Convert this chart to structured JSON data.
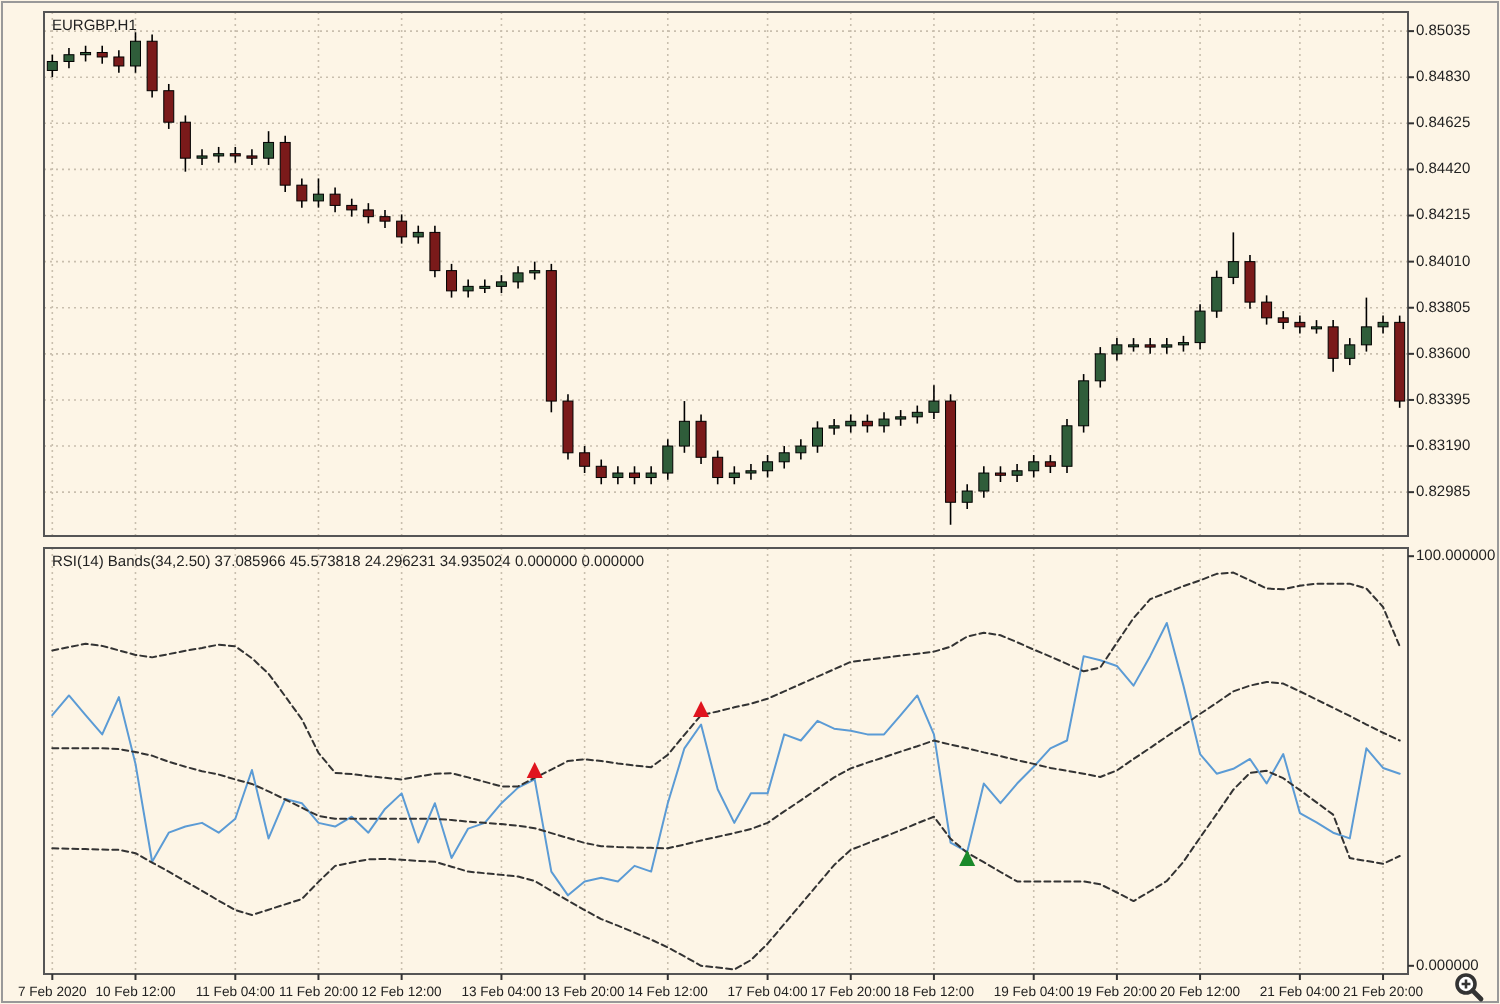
{
  "chart_data": [
    {
      "type": "candlestick",
      "title": "EURGBP,H1",
      "tick_labels": "y",
      "grid": true,
      "categories": [
        null,
        null,
        null,
        null,
        null,
        null,
        null,
        null,
        null,
        null,
        null,
        null,
        null,
        null,
        null,
        null,
        null,
        null,
        null,
        null,
        null,
        null,
        null,
        null,
        null,
        null,
        null,
        null,
        null,
        null,
        null,
        null,
        null,
        null,
        null,
        null,
        null,
        null,
        null,
        null,
        null,
        null,
        null,
        null,
        null,
        null,
        null,
        null,
        null,
        null,
        null,
        null,
        null,
        null,
        null,
        null,
        null,
        null,
        null,
        null,
        null,
        null,
        null,
        null,
        null,
        null,
        null,
        null,
        null,
        null,
        null,
        null,
        null,
        null,
        null,
        null,
        null,
        null,
        null,
        null,
        null,
        null
      ],
      "colors": [
        "#2f5d3a",
        "#2f5d3a",
        "#2f5d3a",
        "#7a1a1a",
        "#7a1a1a",
        "#2f5d3a",
        "#7a1a1a",
        "#7a1a1a",
        "#7a1a1a",
        "#2f5d3a",
        "#2f5d3a",
        "#7a1a1a",
        "#7a1a1a",
        "#2f5d3a",
        "#7a1a1a",
        "#7a1a1a",
        "#2f5d3a",
        "#7a1a1a",
        "#7a1a1a",
        "#7a1a1a",
        "#7a1a1a",
        "#7a1a1a",
        "#2f5d3a",
        "#7a1a1a",
        "#7a1a1a",
        "#2f5d3a",
        "#2f5d3a",
        "#2f5d3a",
        "#2f5d3a",
        "#2f5d3a",
        "#7a1a1a",
        "#7a1a1a",
        "#7a1a1a",
        "#7a1a1a",
        "#2f5d3a",
        "#7a1a1a",
        "#2f5d3a",
        "#2f5d3a",
        "#2f5d3a",
        "#7a1a1a",
        "#7a1a1a",
        "#2f5d3a",
        "#2f5d3a",
        "#2f5d3a",
        "#2f5d3a",
        "#2f5d3a",
        "#2f5d3a",
        "#2f5d3a",
        "#2f5d3a",
        "#7a1a1a",
        "#2f5d3a",
        "#2f5d3a",
        "#2f5d3a",
        "#2f5d3a",
        "#7a1a1a",
        "#2f5d3a",
        "#2f5d3a",
        "#7a1a1a",
        "#2f5d3a",
        "#2f5d3a",
        "#7a1a1a",
        "#2f5d3a",
        "#2f5d3a",
        "#2f5d3a",
        "#2f5d3a",
        "#2f5d3a",
        "#7a1a1a",
        "#2f5d3a",
        "#2f5d3a",
        "#2f5d3a",
        "#2f5d3a",
        "#2f5d3a",
        "#7a1a1a",
        "#7a1a1a",
        "#7a1a1a",
        "#7a1a1a",
        "#2f5d3a",
        "#7a1a1a",
        "#2f5d3a",
        "#2f5d3a",
        "#2f5d3a",
        "#7a1a1a"
      ],
      "ohlc": [
        [
          0.8486,
          0.8493,
          0.8483,
          0.849
        ],
        [
          0.849,
          0.8496,
          0.8487,
          0.8493
        ],
        [
          0.8493,
          0.8497,
          0.849,
          0.8494
        ],
        [
          0.8494,
          0.8497,
          0.8489,
          0.8492
        ],
        [
          0.8492,
          0.8495,
          0.8485,
          0.8488
        ],
        [
          0.8488,
          0.8503,
          0.8485,
          0.8499
        ],
        [
          0.8499,
          0.8502,
          0.8474,
          0.8477
        ],
        [
          0.8477,
          0.848,
          0.846,
          0.8463
        ],
        [
          0.8463,
          0.8466,
          0.8441,
          0.8447
        ],
        [
          0.8447,
          0.8451,
          0.8444,
          0.8448
        ],
        [
          0.8448,
          0.8452,
          0.8445,
          0.8449
        ],
        [
          0.8449,
          0.8452,
          0.8445,
          0.8448
        ],
        [
          0.8448,
          0.8451,
          0.8444,
          0.8447
        ],
        [
          0.8447,
          0.8459,
          0.8444,
          0.8454
        ],
        [
          0.8454,
          0.8457,
          0.8432,
          0.8435
        ],
        [
          0.8435,
          0.8438,
          0.8425,
          0.8428
        ],
        [
          0.8428,
          0.8438,
          0.8425,
          0.8431
        ],
        [
          0.8431,
          0.8434,
          0.8423,
          0.8426
        ],
        [
          0.8426,
          0.8429,
          0.8421,
          0.8424
        ],
        [
          0.8424,
          0.8427,
          0.8418,
          0.8421
        ],
        [
          0.8421,
          0.8424,
          0.8416,
          0.8419
        ],
        [
          0.8419,
          0.8422,
          0.8409,
          0.8412
        ],
        [
          0.8412,
          0.8417,
          0.8409,
          0.8414
        ],
        [
          0.8414,
          0.8417,
          0.8394,
          0.8397
        ],
        [
          0.8397,
          0.84,
          0.8385,
          0.8388
        ],
        [
          0.8388,
          0.8393,
          0.8385,
          0.839
        ],
        [
          0.839,
          0.8393,
          0.8387,
          0.839
        ],
        [
          0.839,
          0.8395,
          0.8387,
          0.8392
        ],
        [
          0.8392,
          0.8399,
          0.8389,
          0.8396
        ],
        [
          0.8396,
          0.8401,
          0.8393,
          0.8397
        ],
        [
          0.8397,
          0.84,
          0.8334,
          0.8339
        ],
        [
          0.8339,
          0.8342,
          0.8313,
          0.8316
        ],
        [
          0.8316,
          0.8319,
          0.8307,
          0.831
        ],
        [
          0.831,
          0.8313,
          0.8302,
          0.8305
        ],
        [
          0.8305,
          0.831,
          0.8302,
          0.8307
        ],
        [
          0.8307,
          0.831,
          0.8302,
          0.8305
        ],
        [
          0.8305,
          0.831,
          0.8302,
          0.8307
        ],
        [
          0.8307,
          0.8322,
          0.8304,
          0.8319
        ],
        [
          0.8319,
          0.8339,
          0.8316,
          0.833
        ],
        [
          0.833,
          0.8333,
          0.8311,
          0.8314
        ],
        [
          0.8314,
          0.8317,
          0.8302,
          0.8305
        ],
        [
          0.8305,
          0.831,
          0.8302,
          0.8307
        ],
        [
          0.8307,
          0.8311,
          0.8304,
          0.8308
        ],
        [
          0.8308,
          0.8315,
          0.8305,
          0.8312
        ],
        [
          0.8312,
          0.8319,
          0.8309,
          0.8316
        ],
        [
          0.8316,
          0.8322,
          0.8313,
          0.8319
        ],
        [
          0.8319,
          0.833,
          0.8316,
          0.8327
        ],
        [
          0.8327,
          0.8331,
          0.8324,
          0.8328
        ],
        [
          0.8328,
          0.8333,
          0.8325,
          0.833
        ],
        [
          0.833,
          0.8333,
          0.8325,
          0.8328
        ],
        [
          0.8328,
          0.8334,
          0.8325,
          0.8331
        ],
        [
          0.8331,
          0.8335,
          0.8328,
          0.8332
        ],
        [
          0.8332,
          0.8337,
          0.8329,
          0.8334
        ],
        [
          0.8334,
          0.8346,
          0.8331,
          0.8339
        ],
        [
          0.8339,
          0.8342,
          0.8284,
          0.8294
        ],
        [
          0.8294,
          0.8302,
          0.8291,
          0.8299
        ],
        [
          0.8299,
          0.831,
          0.8296,
          0.8307
        ],
        [
          0.8307,
          0.831,
          0.8303,
          0.8306
        ],
        [
          0.8306,
          0.8311,
          0.8303,
          0.8308
        ],
        [
          0.8308,
          0.8315,
          0.8305,
          0.8312
        ],
        [
          0.8312,
          0.8315,
          0.8307,
          0.831
        ],
        [
          0.831,
          0.8331,
          0.8307,
          0.8328
        ],
        [
          0.8328,
          0.8351,
          0.8325,
          0.8348
        ],
        [
          0.8348,
          0.8363,
          0.8345,
          0.836
        ],
        [
          0.836,
          0.8367,
          0.8357,
          0.8364
        ],
        [
          0.8364,
          0.8367,
          0.8361,
          0.8364
        ],
        [
          0.8364,
          0.8367,
          0.836,
          0.8363
        ],
        [
          0.8363,
          0.8367,
          0.836,
          0.8364
        ],
        [
          0.8364,
          0.8368,
          0.8361,
          0.8365
        ],
        [
          0.8365,
          0.8382,
          0.8362,
          0.8379
        ],
        [
          0.8379,
          0.8397,
          0.8376,
          0.8394
        ],
        [
          0.8394,
          0.8414,
          0.8391,
          0.8401
        ],
        [
          0.8401,
          0.8404,
          0.838,
          0.8383
        ],
        [
          0.8383,
          0.8386,
          0.8373,
          0.8376
        ],
        [
          0.8376,
          0.8379,
          0.8371,
          0.8374
        ],
        [
          0.8374,
          0.8377,
          0.8369,
          0.8372
        ],
        [
          0.8372,
          0.8375,
          0.8369,
          0.8372
        ],
        [
          0.8372,
          0.8375,
          0.8352,
          0.8358
        ],
        [
          0.8358,
          0.8367,
          0.8355,
          0.8364
        ],
        [
          0.8364,
          0.8385,
          0.8361,
          0.8372
        ],
        [
          0.8372,
          0.8377,
          0.8369,
          0.8374
        ],
        [
          0.8374,
          0.8377,
          0.8336,
          0.8339
        ]
      ],
      "ylim": [
        0.8279,
        0.8512
      ],
      "yticks": [
        {
          "value": 0.85035,
          "label": "0.85035"
        },
        {
          "value": 0.8483,
          "label": "0.84830"
        },
        {
          "value": 0.84625,
          "label": "0.84625"
        },
        {
          "value": 0.8442,
          "label": "0.84420"
        },
        {
          "value": 0.84215,
          "label": "0.84215"
        },
        {
          "value": 0.8401,
          "label": "0.84010"
        },
        {
          "value": 0.83805,
          "label": "0.83805"
        },
        {
          "value": 0.836,
          "label": "0.83600"
        },
        {
          "value": 0.83395,
          "label": "0.83395"
        },
        {
          "value": 0.8319,
          "label": "0.83190"
        },
        {
          "value": 0.82985,
          "label": "0.82985"
        }
      ]
    },
    {
      "type": "line",
      "title": "RSI(14) Bands(34,2.50) 37.085966 45.573818 24.296231 34.935024 0.000000 0.000000",
      "grid": "x",
      "categories": [
        "7 Feb 2020",
        null,
        null,
        null,
        null,
        "10 Feb 12:00",
        null,
        null,
        null,
        null,
        null,
        "11 Feb 04:00",
        null,
        null,
        null,
        null,
        "11 Feb 20:00",
        null,
        null,
        null,
        null,
        "12 Feb 12:00",
        null,
        null,
        null,
        null,
        null,
        "13 Feb 04:00",
        null,
        null,
        null,
        null,
        "13 Feb 20:00",
        null,
        null,
        null,
        null,
        "14 Feb 12:00",
        null,
        null,
        null,
        null,
        null,
        "17 Feb 04:00",
        null,
        null,
        null,
        null,
        "17 Feb 20:00",
        null,
        null,
        null,
        null,
        "18 Feb 12:00",
        null,
        null,
        null,
        null,
        null,
        "19 Feb 04:00",
        null,
        null,
        null,
        null,
        "19 Feb 20:00",
        null,
        null,
        null,
        null,
        "20 Feb 12:00",
        null,
        null,
        null,
        null,
        null,
        "21 Feb 04:00",
        null,
        null,
        null,
        null,
        "21 Feb 20:00",
        null
      ],
      "series": [
        {
          "color": "#5b9bd5",
          "values": [
            61.2,
            66.0,
            61.2,
            56.5,
            65.6,
            49.3,
            25.4,
            32.5,
            34.0,
            34.9,
            32.5,
            35.9,
            47.8,
            31.1,
            40.7,
            39.7,
            34.9,
            34.0,
            36.4,
            32.5,
            38.3,
            42.1,
            30.1,
            39.7,
            26.3,
            33.5,
            34.9,
            39.7,
            43.5,
            45.5,
            23.0,
            17.2,
            20.6,
            21.5,
            20.6,
            24.4,
            23.0,
            39.7,
            53.1,
            58.9,
            43.1,
            34.9,
            42.1,
            42.1,
            56.5,
            55.0,
            59.8,
            57.9,
            57.4,
            56.5,
            56.5,
            61.2,
            66.0,
            56.5,
            30.1,
            27.8,
            44.5,
            39.7,
            44.5,
            48.6,
            53.1,
            55.0,
            75.6,
            74.6,
            73.2,
            68.4,
            75.6,
            83.7,
            68.4,
            51.7,
            46.9,
            48.1,
            50.5,
            44.5,
            51.7,
            37.3,
            35.0,
            32.5,
            31.1,
            53.1,
            48.3,
            46.9
          ]
        },
        {
          "color": "#333333",
          "line_style": "dashed",
          "values": [
            77.0,
            77.8,
            78.6,
            78.1,
            77.0,
            75.9,
            75.3,
            76.1,
            76.9,
            77.6,
            78.4,
            78.0,
            75.1,
            71.3,
            65.8,
            60.2,
            52.0,
            47.1,
            46.8,
            46.3,
            45.9,
            45.5,
            46.2,
            46.9,
            47.0,
            46.0,
            44.9,
            43.8,
            43.8,
            45.9,
            47.9,
            50.0,
            50.4,
            50.0,
            49.4,
            48.9,
            48.5,
            51.5,
            56.4,
            61.2,
            62.1,
            63.1,
            64.0,
            65.2,
            67.0,
            68.8,
            70.6,
            72.4,
            74.2,
            74.7,
            75.2,
            75.7,
            76.2,
            76.7,
            77.9,
            80.4,
            81.3,
            80.7,
            79.0,
            77.2,
            75.5,
            73.7,
            71.9,
            72.8,
            78.9,
            84.9,
            89.5,
            91.1,
            92.7,
            94.1,
            95.7,
            96.0,
            94.1,
            92.1,
            91.9,
            92.8,
            93.3,
            93.3,
            93.3,
            92.1,
            87.6,
            78.0
          ]
        },
        {
          "color": "#333333",
          "line_style": "dashed",
          "values": [
            53.1,
            53.1,
            53.1,
            53.1,
            52.9,
            52.2,
            51.3,
            49.8,
            48.6,
            47.5,
            46.7,
            45.5,
            44.4,
            42.6,
            40.6,
            38.6,
            36.6,
            35.9,
            35.9,
            35.9,
            35.9,
            35.9,
            35.9,
            35.9,
            35.6,
            35.2,
            34.9,
            34.6,
            34.2,
            33.6,
            32.4,
            31.2,
            30.0,
            29.2,
            29.0,
            28.9,
            28.8,
            28.7,
            29.6,
            30.6,
            31.5,
            32.4,
            33.4,
            34.9,
            37.7,
            40.4,
            43.2,
            46.0,
            48.2,
            49.6,
            50.9,
            52.3,
            53.6,
            55.0,
            54.0,
            53.1,
            52.1,
            51.2,
            50.2,
            49.3,
            48.3,
            47.6,
            46.9,
            46.1,
            47.7,
            50.5,
            53.2,
            56.0,
            58.7,
            61.5,
            64.2,
            67.0,
            68.4,
            69.3,
            68.9,
            67.0,
            65.0,
            63.0,
            61.0,
            58.9,
            56.9,
            55.0
          ]
        },
        {
          "color": "#333333",
          "line_style": "dashed",
          "values": [
            28.7,
            28.6,
            28.5,
            28.4,
            28.3,
            27.5,
            25.2,
            23.0,
            20.6,
            18.3,
            15.9,
            13.6,
            12.4,
            13.7,
            15.0,
            16.3,
            20.5,
            24.4,
            25.2,
            26.0,
            26.1,
            25.9,
            25.6,
            25.4,
            24.2,
            23.0,
            22.6,
            22.2,
            21.8,
            20.7,
            18.3,
            15.9,
            13.6,
            11.4,
            9.8,
            8.1,
            6.4,
            4.5,
            2.3,
            0,
            -0.4,
            -0.9,
            1.4,
            5.4,
            10.2,
            15.0,
            19.8,
            24.6,
            28.3,
            29.9,
            31.5,
            33.1,
            34.8,
            36.4,
            31.0,
            27.6,
            25.3,
            22.9,
            20.6,
            20.6,
            20.6,
            20.6,
            20.6,
            19.9,
            17.9,
            15.8,
            18.2,
            20.7,
            25.4,
            31.3,
            37.1,
            43.0,
            47.1,
            47.6,
            45.8,
            42.9,
            39.9,
            36.9,
            26.3,
            25.6,
            24.9,
            26.8
          ]
        },
        {
          "type": "scatter",
          "marker": "triangle",
          "color": "#e0141e",
          "values": [
            null,
            null,
            null,
            null,
            null,
            null,
            null,
            null,
            null,
            null,
            null,
            null,
            null,
            null,
            null,
            null,
            null,
            null,
            null,
            null,
            null,
            null,
            null,
            null,
            null,
            null,
            null,
            null,
            null,
            47.8,
            null,
            null,
            null,
            null,
            null,
            null,
            null,
            null,
            null,
            62.7,
            null,
            null,
            null,
            null,
            null,
            null,
            null,
            null,
            null,
            null,
            null,
            null,
            null,
            null,
            null,
            null,
            null,
            null,
            null,
            null,
            null,
            null,
            null,
            null,
            null,
            null,
            null,
            null,
            null,
            null,
            null,
            null,
            null,
            null,
            null,
            null,
            null,
            null,
            null,
            null,
            null,
            null
          ]
        },
        {
          "type": "scatter",
          "marker": "triangle",
          "color": "#1a8a2a",
          "values": [
            null,
            null,
            null,
            null,
            null,
            null,
            null,
            null,
            null,
            null,
            null,
            null,
            null,
            null,
            null,
            null,
            null,
            null,
            null,
            null,
            null,
            null,
            null,
            null,
            null,
            null,
            null,
            null,
            null,
            null,
            null,
            null,
            null,
            null,
            null,
            null,
            null,
            null,
            null,
            null,
            null,
            null,
            null,
            null,
            null,
            null,
            null,
            null,
            null,
            null,
            null,
            null,
            null,
            null,
            null,
            26.3,
            null,
            null,
            null,
            null,
            null,
            null,
            null,
            null,
            null,
            null,
            null,
            null,
            null,
            null,
            null,
            null,
            null,
            null,
            null,
            null,
            null,
            null,
            null,
            null,
            null,
            null
          ]
        }
      ],
      "ylim": [
        -2,
        102
      ],
      "yticks": [
        {
          "value": 100,
          "label": "100.000000"
        },
        {
          "value": 0,
          "label": "0.000000"
        }
      ]
    }
  ]
}
